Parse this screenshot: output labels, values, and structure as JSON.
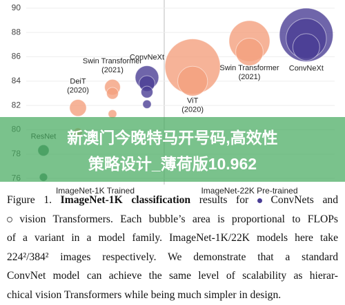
{
  "chart_data": {
    "type": "bubble",
    "ylim": [
      75.5,
      90.5
    ],
    "yticks": [
      76,
      78,
      80,
      82,
      84,
      86,
      88,
      90
    ],
    "grid": true,
    "panels": [
      {
        "xlabel": "ImageNet-1K Trained",
        "label_position": "above",
        "series": [
          {
            "name": "ResNet",
            "color": "#2f6e52",
            "values": [
              76.1,
              78.3
            ],
            "sizes": [
              4.1,
              7.8
            ]
          },
          {
            "name": "DeiT",
            "year": "(2020)",
            "color": "#f4a07e",
            "values": [
              79.8,
              81.8
            ],
            "sizes": [
              4.6,
              17.6
            ]
          },
          {
            "name": "Swin Transformer",
            "year": "(2021)",
            "color": "#f4a07e",
            "values": [
              81.3,
              83.0,
              83.5
            ],
            "sizes": [
              4.5,
              8.7,
              15.4
            ]
          },
          {
            "name": "ConvNeXt",
            "color": "#4b3f95",
            "values": [
              82.1,
              83.1,
              83.8,
              84.3
            ],
            "sizes": [
              4.5,
              8.7,
              15.4,
              34.4
            ]
          }
        ]
      },
      {
        "xlabel": "ImageNet-22K Pre-trained",
        "label_position": "below",
        "series": [
          {
            "name": "ViT",
            "year": "(2020)",
            "color": "#f4a07e",
            "values": [
              84.0,
              85.2
            ],
            "sizes": [
              55.5,
              191
            ]
          },
          {
            "name": "Swin Transformer",
            "year": "(2021)",
            "color": "#f4a07e",
            "values": [
              86.4,
              87.3
            ],
            "sizes": [
              47,
              103.9
            ]
          },
          {
            "name": "ConvNeXt",
            "color": "#4b3f95",
            "values": [
              86.8,
              87.5,
              87.8
            ],
            "sizes": [
              45.1,
              101,
              179
            ]
          }
        ]
      }
    ]
  },
  "overlay": {
    "lines": [
      "新澳门今晚特马开号码,高效性",
      "策略设计_薄荷版10.962"
    ]
  },
  "caption": {
    "label": "Figure 1.",
    "title": "ImageNet-1K classification",
    "line1": [
      "results for",
      "ConvNets and"
    ],
    "lines": [
      "vision Transformers. Each bubble’s area is proportional to FLOPs",
      "of a variant in a model family. ImageNet-1K/22K models here take",
      "224²/384² images respectively.  We demonstrate that a standard",
      "ConvNet model can achieve the same level of scalability as hierar-",
      "chical vision Transformers while being much simpler in design."
    ]
  }
}
